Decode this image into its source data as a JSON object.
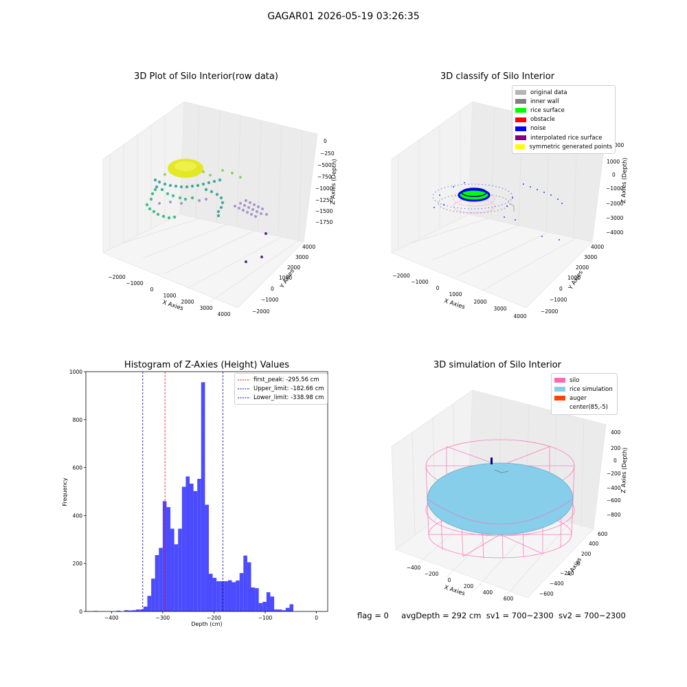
{
  "figure_title": "GAGAR01 2026-05-19 03:26:35",
  "footer": {
    "flag": "flag = 0",
    "avg_depth": "avgDepth = 292 cm",
    "sv1": "sv1 = 700~2300",
    "sv2": "sv2 = 700~2300"
  },
  "colors": {
    "original": "#b4b4b4",
    "inner_wall": "#808080",
    "rice_surface": "#00ff00",
    "obstacle": "#ff0000",
    "noise": "#0000ff",
    "interpolated": "#800080",
    "symmetric": "#ffff00",
    "silo": "#ff69b4",
    "rice_sim": "#87ceeb",
    "auger": "#ff4500",
    "hist_bar": "#4b4bff",
    "peak_line": "#ff0000",
    "limit_line": "#0000aa"
  },
  "chart_data": [
    {
      "type": "scatter",
      "title": "3D Plot of Silo Interior(row data)",
      "xlabel": "X Axies",
      "ylabel": "Y Axies",
      "zlabel": "Z Axies (Depth)",
      "x_ticks": [
        "−2000",
        "−1000",
        "0",
        "1000",
        "2000",
        "3000",
        "4000"
      ],
      "y_ticks": [
        "−2000",
        "−1000",
        "0",
        "1000",
        "2000",
        "3000",
        "4000"
      ],
      "z_ticks": [
        "0",
        "−250",
        "−500",
        "−750",
        "−1000",
        "−1250",
        "−1500",
        "−1750"
      ],
      "grid": true
    },
    {
      "type": "scatter",
      "title": "3D classify of Silo Interior",
      "xlabel": "X Axies",
      "ylabel": "Y Axies",
      "zlabel": "Z Axies (Depth)",
      "x_ticks": [
        "−2000",
        "−1000",
        "0",
        "1000",
        "2000",
        "3000",
        "4000"
      ],
      "y_ticks": [
        "−2000",
        "−1000",
        "0",
        "1000",
        "2000",
        "3000",
        "4000"
      ],
      "z_ticks": [
        "2000",
        "1000",
        "0",
        "−1000",
        "−2000",
        "−3000",
        "−4000"
      ],
      "z_tick_partial": "000",
      "legend": [
        "original data",
        "inner wall",
        "rice surface",
        "obstacle",
        "noise",
        "interpolated rice surface",
        "symmetric generated points"
      ],
      "legend_position": "top-right",
      "grid": true
    },
    {
      "type": "bar",
      "title": "Histogram of Z-Axies (Height) Values",
      "xlabel": "Depth (cm)",
      "ylabel": "Frequency",
      "xlim": [
        -450,
        22
      ],
      "ylim": [
        0,
        1000
      ],
      "x_ticks": [
        -400,
        -300,
        -200,
        -100,
        0
      ],
      "x_tick_labels": [
        "−400",
        "−300",
        "−200",
        "−100",
        "0"
      ],
      "y_ticks": [
        0,
        200,
        400,
        600,
        800,
        1000
      ],
      "bin_width": 7.5,
      "bins_start": [
        -435,
        -390,
        -375,
        -367.5,
        -360,
        -352.5,
        -345,
        -337.5,
        -330,
        -322.5,
        -315,
        -307.5,
        -300,
        -292.5,
        -285,
        -277.5,
        -270,
        -262.5,
        -255,
        -247.5,
        -240,
        -232.5,
        -225,
        -217.5,
        -210,
        -202.5,
        -195,
        -187.5,
        -180,
        -172.5,
        -165,
        -157.5,
        -150,
        -142.5,
        -135,
        -127.5,
        -120,
        -112.5,
        -105,
        -97.5,
        -90,
        -82.5,
        -75,
        -67.5,
        -60,
        -52.5,
        -45,
        -37.5,
        -30,
        -22.5,
        -15,
        -7.5
      ],
      "counts": [
        2,
        3,
        5,
        4,
        5,
        8,
        8,
        20,
        65,
        137,
        235,
        265,
        460,
        435,
        345,
        280,
        345,
        520,
        563,
        533,
        502,
        553,
        956,
        445,
        157,
        140,
        126,
        126,
        126,
        130,
        122,
        129,
        160,
        233,
        205,
        100,
        97,
        35,
        40,
        80,
        62,
        8,
        8,
        5,
        15,
        30,
        0,
        0,
        0,
        0,
        0,
        0
      ],
      "reference_lines": [
        {
          "name": "first_peak: -295.56 cm",
          "x": -295.56,
          "color": "#ff0000"
        },
        {
          "name": "Upper_limit: -182.66 cm",
          "x": -182.66,
          "color": "#0000aa"
        },
        {
          "name": "Lower_limit: -338.98 cm",
          "x": -338.98,
          "color": "#0000aa"
        }
      ],
      "legend_position": "top-right"
    },
    {
      "type": "scatter",
      "title": "3D simulation of Silo Interior",
      "xlabel": "X Axies",
      "ylabel": "Y Axies",
      "zlabel": "Z Axies (Depth)",
      "x_ticks": [
        "−400",
        "−200",
        "0",
        "200",
        "400",
        "600"
      ],
      "y_ticks": [
        "−600",
        "−400",
        "−200",
        "0",
        "200",
        "400",
        "600"
      ],
      "z_ticks": [
        "400",
        "200",
        "0",
        "−200",
        "−400",
        "−600",
        "−800"
      ],
      "legend": [
        "silo",
        "rice simulation",
        "auger",
        "center(85,-5)"
      ],
      "legend_position": "top-right",
      "grid": true
    }
  ]
}
